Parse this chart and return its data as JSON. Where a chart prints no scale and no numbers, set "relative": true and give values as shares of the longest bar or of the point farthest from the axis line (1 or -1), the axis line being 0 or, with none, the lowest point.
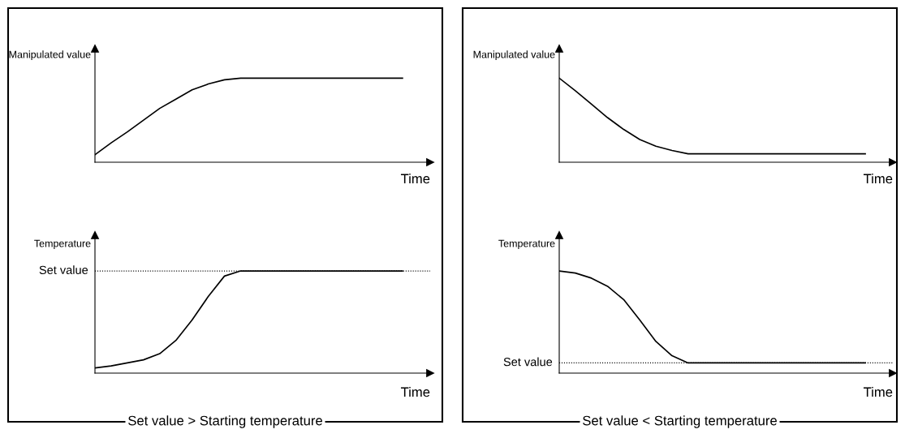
{
  "chart_data": [
    {
      "type": "line",
      "relative": true,
      "xlabel": "Time",
      "ylabel": "Manipulated value",
      "categories": [
        null,
        null,
        null,
        null,
        null,
        null,
        null,
        null,
        null,
        null,
        null,
        null,
        null,
        null,
        null,
        null,
        null,
        null,
        null,
        null
      ],
      "series": [
        {
          "color": "#000000",
          "values": [
            0.09,
            0.23,
            0.36,
            0.5,
            0.64,
            0.75,
            0.86,
            0.93,
            0.98,
            1,
            1,
            1,
            1,
            1,
            1,
            1,
            1,
            1,
            1,
            1
          ]
        }
      ],
      "legend": false,
      "marker": "none",
      "line_style": "solid"
    },
    {
      "type": "line",
      "relative": true,
      "xlabel": "Time",
      "ylabel": "Manipulated value",
      "categories": [
        null,
        null,
        null,
        null,
        null,
        null,
        null,
        null,
        null,
        null,
        null,
        null,
        null,
        null,
        null,
        null,
        null,
        null,
        null,
        null
      ],
      "series": [
        {
          "color": "#000000",
          "values": [
            1,
            0.85,
            0.69,
            0.53,
            0.39,
            0.27,
            0.19,
            0.14,
            0.1,
            0.1,
            0.1,
            0.1,
            0.1,
            0.1,
            0.1,
            0.1,
            0.1,
            0.1,
            0.1,
            0.1
          ]
        }
      ],
      "legend": false,
      "marker": "none",
      "line_style": "solid"
    },
    {
      "type": "line",
      "relative": true,
      "xlabel": "Time",
      "ylabel": "Temperature",
      "categories": [
        null,
        null,
        null,
        null,
        null,
        null,
        null,
        null,
        null,
        null,
        null,
        null,
        null,
        null,
        null,
        null,
        null,
        null,
        null,
        null
      ],
      "series": [
        {
          "color": "#000000",
          "values": [
            0.05,
            0.07,
            0.1,
            0.13,
            0.19,
            0.32,
            0.52,
            0.75,
            0.95,
            1,
            1,
            1,
            1,
            1,
            1,
            1,
            1,
            1,
            1,
            1
          ]
        }
      ],
      "ref_lines": [
        {
          "axis": "y",
          "value": 1,
          "label": "Set value",
          "line_style": "dotted",
          "color": "#000000"
        }
      ],
      "annotations": [
        "Set value > Starting temperature"
      ],
      "legend": false,
      "marker": "none",
      "line_style": "solid"
    },
    {
      "type": "line",
      "relative": true,
      "xlabel": "Time",
      "ylabel": "Temperature",
      "categories": [
        null,
        null,
        null,
        null,
        null,
        null,
        null,
        null,
        null,
        null,
        null,
        null,
        null,
        null,
        null,
        null,
        null,
        null,
        null,
        null
      ],
      "series": [
        {
          "color": "#000000",
          "values": [
            1,
            0.98,
            0.93,
            0.85,
            0.72,
            0.52,
            0.31,
            0.17,
            0.1,
            0.1,
            0.1,
            0.1,
            0.1,
            0.1,
            0.1,
            0.1,
            0.1,
            0.1,
            0.1,
            0.1
          ]
        }
      ],
      "ref_lines": [
        {
          "axis": "y",
          "value": 0.1,
          "label": "Set value",
          "line_style": "dotted",
          "color": "#000000"
        }
      ],
      "annotations": [
        "Set value < Starting temperature"
      ],
      "legend": false,
      "marker": "none",
      "line_style": "solid"
    }
  ]
}
